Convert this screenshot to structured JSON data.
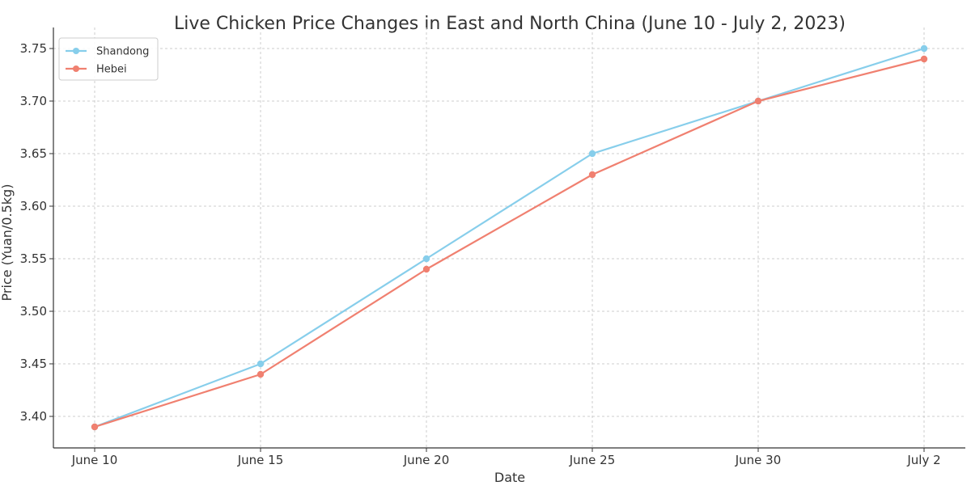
{
  "chart_data": {
    "type": "line",
    "title": "Live Chicken Price Changes in East and North China (June 10 - July 2, 2023)",
    "xlabel": "Date",
    "ylabel": "Price (Yuan/0.5kg)",
    "categories": [
      "June 10",
      "June 15",
      "June 20",
      "June 25",
      "June 30",
      "July 2"
    ],
    "ylim": [
      3.37,
      3.77
    ],
    "yticks": [
      "3.40",
      "3.45",
      "3.50",
      "3.55",
      "3.60",
      "3.65",
      "3.70",
      "3.75"
    ],
    "grid": true,
    "legend_position": "top-left",
    "series": [
      {
        "name": "Shandong",
        "color": "#87CEEB",
        "values": [
          3.39,
          3.45,
          3.55,
          3.65,
          3.7,
          3.75
        ]
      },
      {
        "name": "Hebei",
        "color": "#F08070",
        "values": [
          3.39,
          3.44,
          3.54,
          3.63,
          3.7,
          3.74
        ]
      }
    ]
  }
}
